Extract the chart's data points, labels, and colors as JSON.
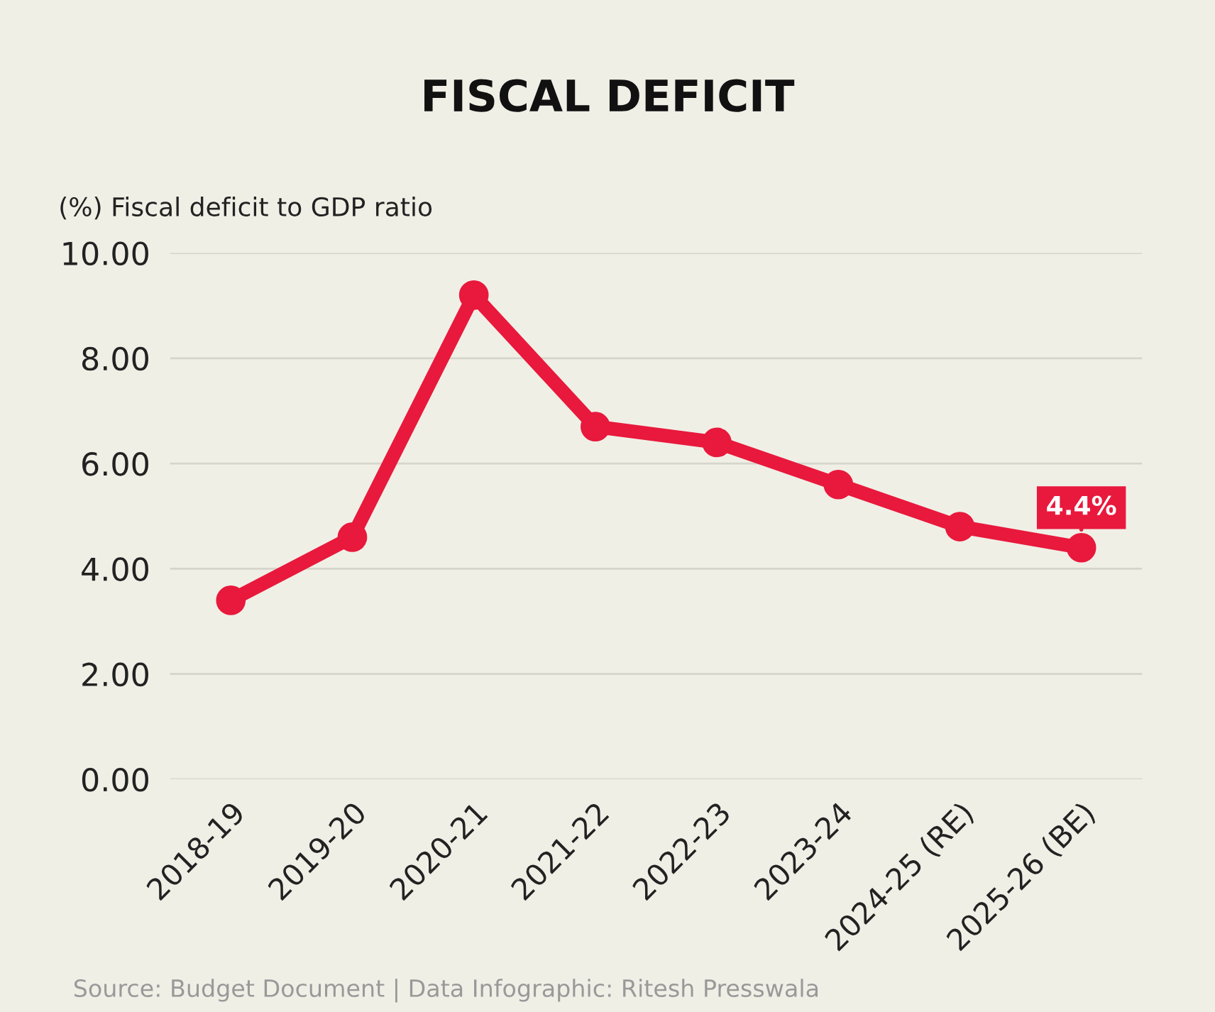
{
  "chart_data": {
    "type": "line",
    "title": "FISCAL DEFICIT",
    "ylabel": "(%) Fiscal deficit to GDP ratio",
    "categories": [
      "2018-19",
      "2019-20",
      "2020-21",
      "2021-22",
      "2022-23",
      "2023-24",
      "2024-25 (RE)",
      "2025-26 (BE)"
    ],
    "series": [
      {
        "color": "#e8193c",
        "values": [
          3.4,
          4.6,
          9.2,
          6.7,
          6.4,
          5.6,
          4.8,
          4.4
        ]
      }
    ],
    "ylim": [
      0,
      10
    ],
    "yticks": [
      {
        "value": 0,
        "label": "0.00"
      },
      {
        "value": 2,
        "label": "2.00"
      },
      {
        "value": 4,
        "label": "4.00"
      },
      {
        "value": 6,
        "label": "6.00"
      },
      {
        "value": 8,
        "label": "8.00"
      },
      {
        "value": 10,
        "label": "10.00"
      }
    ],
    "grid": "y",
    "marker": "circle",
    "line_style": "solid",
    "legend": false,
    "annotations": [
      {
        "text": "4.4%",
        "x": "2025-26 (BE)",
        "y": 4.4
      },
      "Source: Budget Document | Data Infographic: Ritesh Presswala"
    ]
  }
}
